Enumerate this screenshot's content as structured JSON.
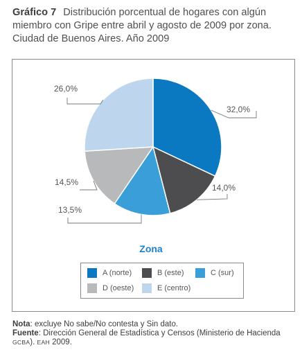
{
  "header": {
    "figure_number": "Gráfico 7",
    "title_text": "Distribución porcentual de hogares con algún miembro con Gripe entre abril y agosto de 2009 por zona. Ciudad de Buenos Aires. Año 2009"
  },
  "chart_data": {
    "type": "pie",
    "title": "Distribución porcentual de hogares con algún miembro con Gripe entre abril y agosto de 2009 por zona. Ciudad de Buenos Aires. Año 2009",
    "legend_title": "Zona",
    "legend_position": "bottom",
    "slices": [
      {
        "name": "A (norte)",
        "value": 32.0,
        "label": "32,0%",
        "color": "#0b79c1"
      },
      {
        "name": "B (este)",
        "value": 14.0,
        "label": "14,0%",
        "color": "#4d4d4f"
      },
      {
        "name": "C (sur)",
        "value": 13.5,
        "label": "13,5%",
        "color": "#3a9ed8"
      },
      {
        "name": "D (oeste)",
        "value": 14.5,
        "label": "14,5%",
        "color": "#b8b9bb"
      },
      {
        "name": "E (centro)",
        "value": 26.0,
        "label": "26,0%",
        "color": "#bdd6ee"
      }
    ]
  },
  "footer": {
    "nota_label": "Nota",
    "nota_text": ": excluye No sabe/No contesta y Sin dato.",
    "fuente_label": "Fuente",
    "fuente_text": ": Dirección General de Estadística y Censos (Ministerio de Hacienda ",
    "fuente_org": "GCBA",
    "fuente_sep": "). ",
    "fuente_survey": "EAH",
    "fuente_year": " 2009."
  }
}
